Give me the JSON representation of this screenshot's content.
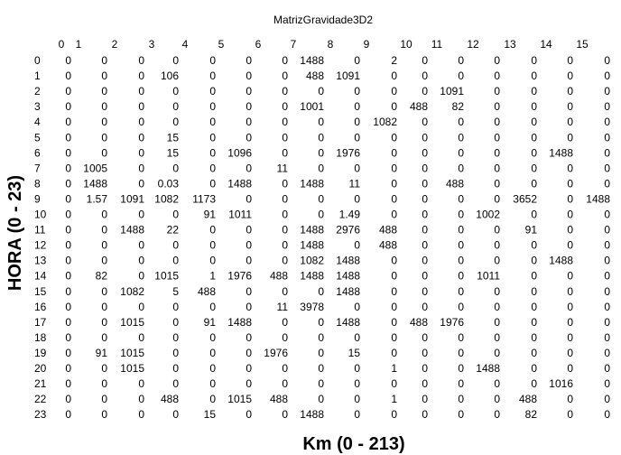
{
  "chart_data": {
    "type": "table",
    "title": "MatrizGravidade3D2",
    "xlabel": "Km (0 - 213)",
    "ylabel": "HORA (0 - 23)",
    "grid": false,
    "x_ticks": [
      "0",
      "1",
      "2",
      "3",
      "4",
      "5",
      "6",
      "7",
      "8",
      "9",
      "10",
      "11",
      "12",
      "13",
      "14",
      "15"
    ],
    "y_ticks": [
      "0",
      "1",
      "2",
      "3",
      "4",
      "5",
      "6",
      "7",
      "8",
      "9",
      "10",
      "11",
      "12",
      "13",
      "14",
      "15",
      "16",
      "17",
      "18",
      "19",
      "20",
      "21",
      "22",
      "23"
    ],
    "rows": [
      [
        "0",
        "0",
        "0",
        "0",
        "0",
        "0",
        "0",
        "1488",
        "0",
        "2",
        "0",
        "0",
        "0",
        "0",
        "0",
        "0"
      ],
      [
        "0",
        "0",
        "0",
        "106",
        "0",
        "0",
        "0",
        "488",
        "1091",
        "0",
        "0",
        "0",
        "0",
        "0",
        "0",
        "0"
      ],
      [
        "0",
        "0",
        "0",
        "0",
        "0",
        "0",
        "0",
        "0",
        "0",
        "0",
        "0",
        "1091",
        "0",
        "0",
        "0",
        "0"
      ],
      [
        "0",
        "0",
        "0",
        "0",
        "0",
        "0",
        "0",
        "1001",
        "0",
        "0",
        "488",
        "82",
        "0",
        "0",
        "0",
        "0"
      ],
      [
        "0",
        "0",
        "0",
        "0",
        "0",
        "0",
        "0",
        "0",
        "0",
        "1082",
        "0",
        "0",
        "0",
        "0",
        "0",
        "0"
      ],
      [
        "0",
        "0",
        "0",
        "15",
        "0",
        "0",
        "0",
        "0",
        "0",
        "0",
        "0",
        "0",
        "0",
        "0",
        "0",
        "0"
      ],
      [
        "0",
        "0",
        "0",
        "15",
        "0",
        "1096",
        "0",
        "0",
        "1976",
        "0",
        "0",
        "0",
        "0",
        "0",
        "1488",
        "0"
      ],
      [
        "0",
        "1005",
        "0",
        "0",
        "0",
        "0",
        "11",
        "0",
        "0",
        "0",
        "0",
        "0",
        "0",
        "0",
        "0",
        "0"
      ],
      [
        "0",
        "1488",
        "0",
        "0.03",
        "0",
        "1488",
        "0",
        "1488",
        "11",
        "0",
        "0",
        "488",
        "0",
        "0",
        "0",
        "0"
      ],
      [
        "0",
        "1.57",
        "1091",
        "1082",
        "1173",
        "0",
        "0",
        "0",
        "0",
        "0",
        "0",
        "0",
        "0",
        "3652",
        "0",
        "1488"
      ],
      [
        "0",
        "0",
        "0",
        "0",
        "91",
        "1011",
        "0",
        "0",
        "1.49",
        "0",
        "0",
        "0",
        "1002",
        "0",
        "0",
        "0"
      ],
      [
        "0",
        "0",
        "1488",
        "22",
        "0",
        "0",
        "0",
        "1488",
        "2976",
        "488",
        "0",
        "0",
        "0",
        "91",
        "0",
        "0"
      ],
      [
        "0",
        "0",
        "0",
        "0",
        "0",
        "0",
        "0",
        "1488",
        "0",
        "488",
        "0",
        "0",
        "0",
        "0",
        "0",
        "0"
      ],
      [
        "0",
        "0",
        "0",
        "0",
        "0",
        "0",
        "0",
        "1082",
        "1488",
        "0",
        "0",
        "0",
        "0",
        "0",
        "1488",
        "0"
      ],
      [
        "0",
        "82",
        "0",
        "1015",
        "1",
        "1976",
        "488",
        "1488",
        "1488",
        "0",
        "0",
        "0",
        "1011",
        "0",
        "0",
        "0"
      ],
      [
        "0",
        "0",
        "1082",
        "5",
        "488",
        "0",
        "0",
        "0",
        "1488",
        "0",
        "0",
        "0",
        "0",
        "0",
        "0",
        "0"
      ],
      [
        "0",
        "0",
        "0",
        "0",
        "0",
        "0",
        "11",
        "3978",
        "0",
        "0",
        "0",
        "0",
        "0",
        "0",
        "0",
        "0"
      ],
      [
        "0",
        "0",
        "1015",
        "0",
        "91",
        "1488",
        "0",
        "0",
        "1488",
        "0",
        "488",
        "1976",
        "0",
        "0",
        "0",
        "0"
      ],
      [
        "0",
        "0",
        "0",
        "0",
        "0",
        "0",
        "0",
        "0",
        "0",
        "0",
        "0",
        "0",
        "0",
        "0",
        "0",
        "0"
      ],
      [
        "0",
        "91",
        "1015",
        "0",
        "0",
        "0",
        "1976",
        "0",
        "15",
        "0",
        "0",
        "0",
        "0",
        "0",
        "0",
        "0"
      ],
      [
        "0",
        "0",
        "1015",
        "0",
        "0",
        "0",
        "0",
        "0",
        "0",
        "1",
        "0",
        "0",
        "1488",
        "0",
        "0",
        "0"
      ],
      [
        "0",
        "0",
        "0",
        "0",
        "0",
        "0",
        "0",
        "0",
        "0",
        "0",
        "0",
        "0",
        "0",
        "0",
        "1016",
        "0"
      ],
      [
        "0",
        "0",
        "0",
        "488",
        "0",
        "1015",
        "488",
        "0",
        "0",
        "1",
        "0",
        "0",
        "0",
        "488",
        "0",
        "0"
      ],
      [
        "0",
        "0",
        "0",
        "0",
        "15",
        "0",
        "0",
        "1488",
        "0",
        "0",
        "0",
        "0",
        "0",
        "82",
        "0",
        "0"
      ]
    ]
  }
}
